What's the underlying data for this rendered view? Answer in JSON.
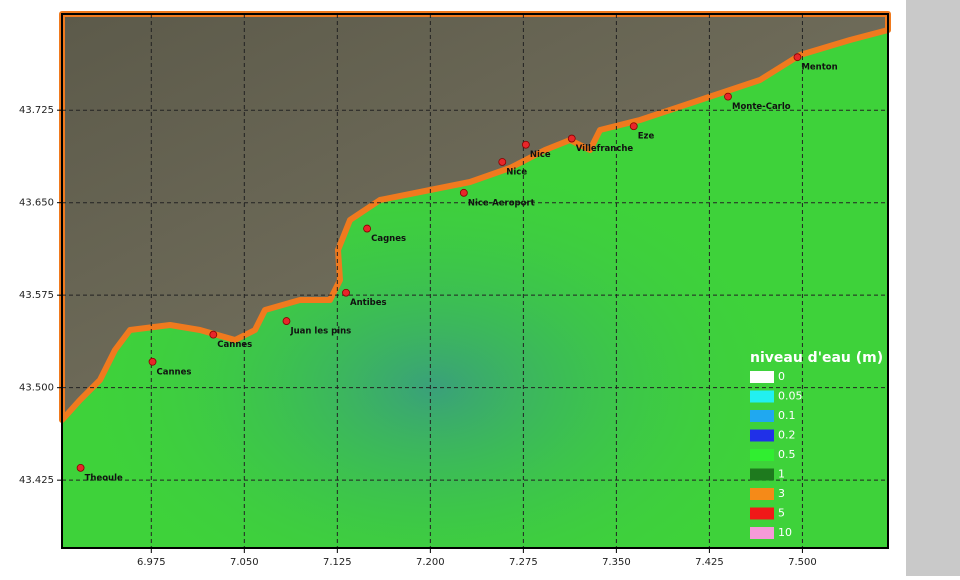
{
  "chart_data": {
    "type": "map",
    "xlim": [
      6.903,
      7.569
    ],
    "ylim": [
      43.37,
      43.803
    ],
    "xticks": [
      6.975,
      {
        "value": 7.05,
        "label": "7.050"
      },
      7.125,
      {
        "value": 7.2,
        "label": "7.200"
      },
      7.275,
      {
        "value": 7.35,
        "label": "7.350"
      },
      7.425,
      {
        "value": 7.5,
        "label": "7.500"
      }
    ],
    "yticks": [
      43.725,
      {
        "value": 43.65,
        "label": "43.650"
      },
      43.575,
      {
        "value": 43.5,
        "label": "43.500"
      },
      43.425
    ],
    "grid": true,
    "places": {
      "labels": [
        "Menton",
        "Monte-Carlo",
        "Eze",
        "Villefranche",
        "Nice",
        "Nice",
        "Nice-Aeroport",
        "Cagnes",
        "Antibes",
        "Juan les pins",
        "Cannes",
        "Cannes",
        "Theoule"
      ],
      "x": [
        7.496,
        7.44,
        7.364,
        7.314,
        7.277,
        7.258,
        7.227,
        7.149,
        7.132,
        7.084,
        7.025,
        6.976,
        6.918
      ],
      "y": [
        43.768,
        43.736,
        43.712,
        43.702,
        43.697,
        43.683,
        43.658,
        43.629,
        43.577,
        43.554,
        43.543,
        43.521,
        43.435
      ],
      "color": "#e8262a"
    },
    "legend": {
      "title": "niveau d'eau (m)",
      "labels": [
        "0",
        "0.05",
        "0.1",
        "0.2",
        "0.5",
        "1",
        "3",
        "5",
        "10"
      ],
      "colors": [
        "#ffffff",
        "#22f0f0",
        "#20a8f0",
        "#2030e8",
        "#30ee30",
        "#1e7a1e",
        "#f58a18",
        "#f01818",
        "#f59ad8"
      ]
    }
  }
}
